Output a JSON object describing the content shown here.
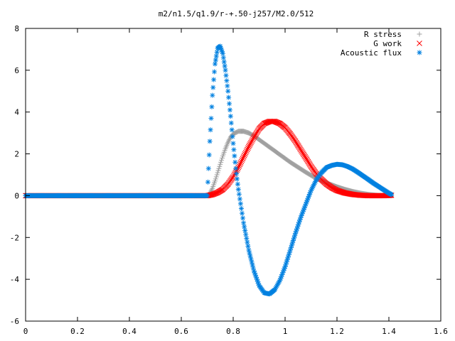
{
  "chart_data": {
    "type": "scatter",
    "title": "m2/n1.5/q1.9/r-+.50-j257/M2.0/512",
    "xlabel": "",
    "ylabel": "",
    "xlim": [
      0,
      1.6
    ],
    "ylim": [
      -6,
      8
    ],
    "x_ticks": [
      "0",
      "0.2",
      "0.4",
      "0.6",
      "0.8",
      "1",
      "1.2",
      "1.4",
      "1.6"
    ],
    "y_ticks": [
      "-6",
      "-4",
      "-2",
      "0",
      "2",
      "4",
      "6",
      "8"
    ],
    "legend_position": "top-right",
    "grid": false,
    "series": [
      {
        "name": "R stress",
        "marker": "plus",
        "color": "#a0a0a0",
        "x": [
          0,
          0.7,
          0.71,
          0.72,
          0.73,
          0.74,
          0.75,
          0.76,
          0.77,
          0.78,
          0.79,
          0.8,
          0.82,
          0.84,
          0.86,
          0.88,
          0.9,
          0.92,
          0.94,
          0.96,
          0.98,
          1.0,
          1.02,
          1.05,
          1.08,
          1.11,
          1.14,
          1.17,
          1.2,
          1.23,
          1.26,
          1.29,
          1.32,
          1.35,
          1.38,
          1.41
        ],
        "y": [
          0,
          0,
          0.1,
          0.35,
          0.7,
          1.1,
          1.5,
          1.9,
          2.25,
          2.55,
          2.8,
          2.95,
          3.08,
          3.08,
          3.0,
          2.85,
          2.68,
          2.5,
          2.32,
          2.14,
          1.96,
          1.78,
          1.6,
          1.36,
          1.12,
          0.9,
          0.72,
          0.56,
          0.42,
          0.3,
          0.2,
          0.12,
          0.06,
          0.02,
          0.0,
          0.0
        ]
      },
      {
        "name": "G work",
        "marker": "cross",
        "color": "#ff0000",
        "x": [
          0,
          0.7,
          0.72,
          0.74,
          0.76,
          0.78,
          0.8,
          0.82,
          0.84,
          0.86,
          0.88,
          0.9,
          0.92,
          0.94,
          0.96,
          0.98,
          1.0,
          1.02,
          1.04,
          1.06,
          1.08,
          1.1,
          1.12,
          1.14,
          1.16,
          1.18,
          1.2,
          1.23,
          1.26,
          1.29,
          1.32,
          1.35,
          1.38,
          1.41
        ],
        "y": [
          0,
          0,
          0.05,
          0.15,
          0.3,
          0.55,
          0.9,
          1.35,
          1.85,
          2.35,
          2.8,
          3.2,
          3.45,
          3.55,
          3.55,
          3.45,
          3.25,
          2.95,
          2.6,
          2.2,
          1.8,
          1.4,
          1.05,
          0.78,
          0.55,
          0.38,
          0.25,
          0.13,
          0.06,
          0.02,
          0.0,
          0.0,
          0.0,
          0.02
        ]
      },
      {
        "name": "Acoustic flux",
        "marker": "star",
        "color": "#0080e0",
        "x": [
          0,
          0.7,
          0.71,
          0.72,
          0.73,
          0.74,
          0.75,
          0.76,
          0.77,
          0.78,
          0.79,
          0.8,
          0.81,
          0.82,
          0.84,
          0.86,
          0.88,
          0.9,
          0.92,
          0.94,
          0.96,
          0.98,
          1.0,
          1.02,
          1.04,
          1.06,
          1.08,
          1.1,
          1.12,
          1.14,
          1.16,
          1.18,
          1.2,
          1.22,
          1.24,
          1.26,
          1.28,
          1.3,
          1.32,
          1.34,
          1.36,
          1.38,
          1.4,
          1.41
        ],
        "y": [
          0,
          0,
          2.6,
          4.8,
          6.3,
          7.05,
          7.15,
          6.8,
          6.0,
          5.0,
          3.8,
          2.5,
          1.3,
          0.3,
          -1.3,
          -2.6,
          -3.6,
          -4.3,
          -4.65,
          -4.7,
          -4.5,
          -4.05,
          -3.4,
          -2.6,
          -1.8,
          -1.05,
          -0.4,
          0.25,
          0.75,
          1.1,
          1.35,
          1.45,
          1.5,
          1.48,
          1.4,
          1.28,
          1.12,
          0.95,
          0.78,
          0.6,
          0.44,
          0.28,
          0.12,
          0.05
        ]
      }
    ]
  }
}
